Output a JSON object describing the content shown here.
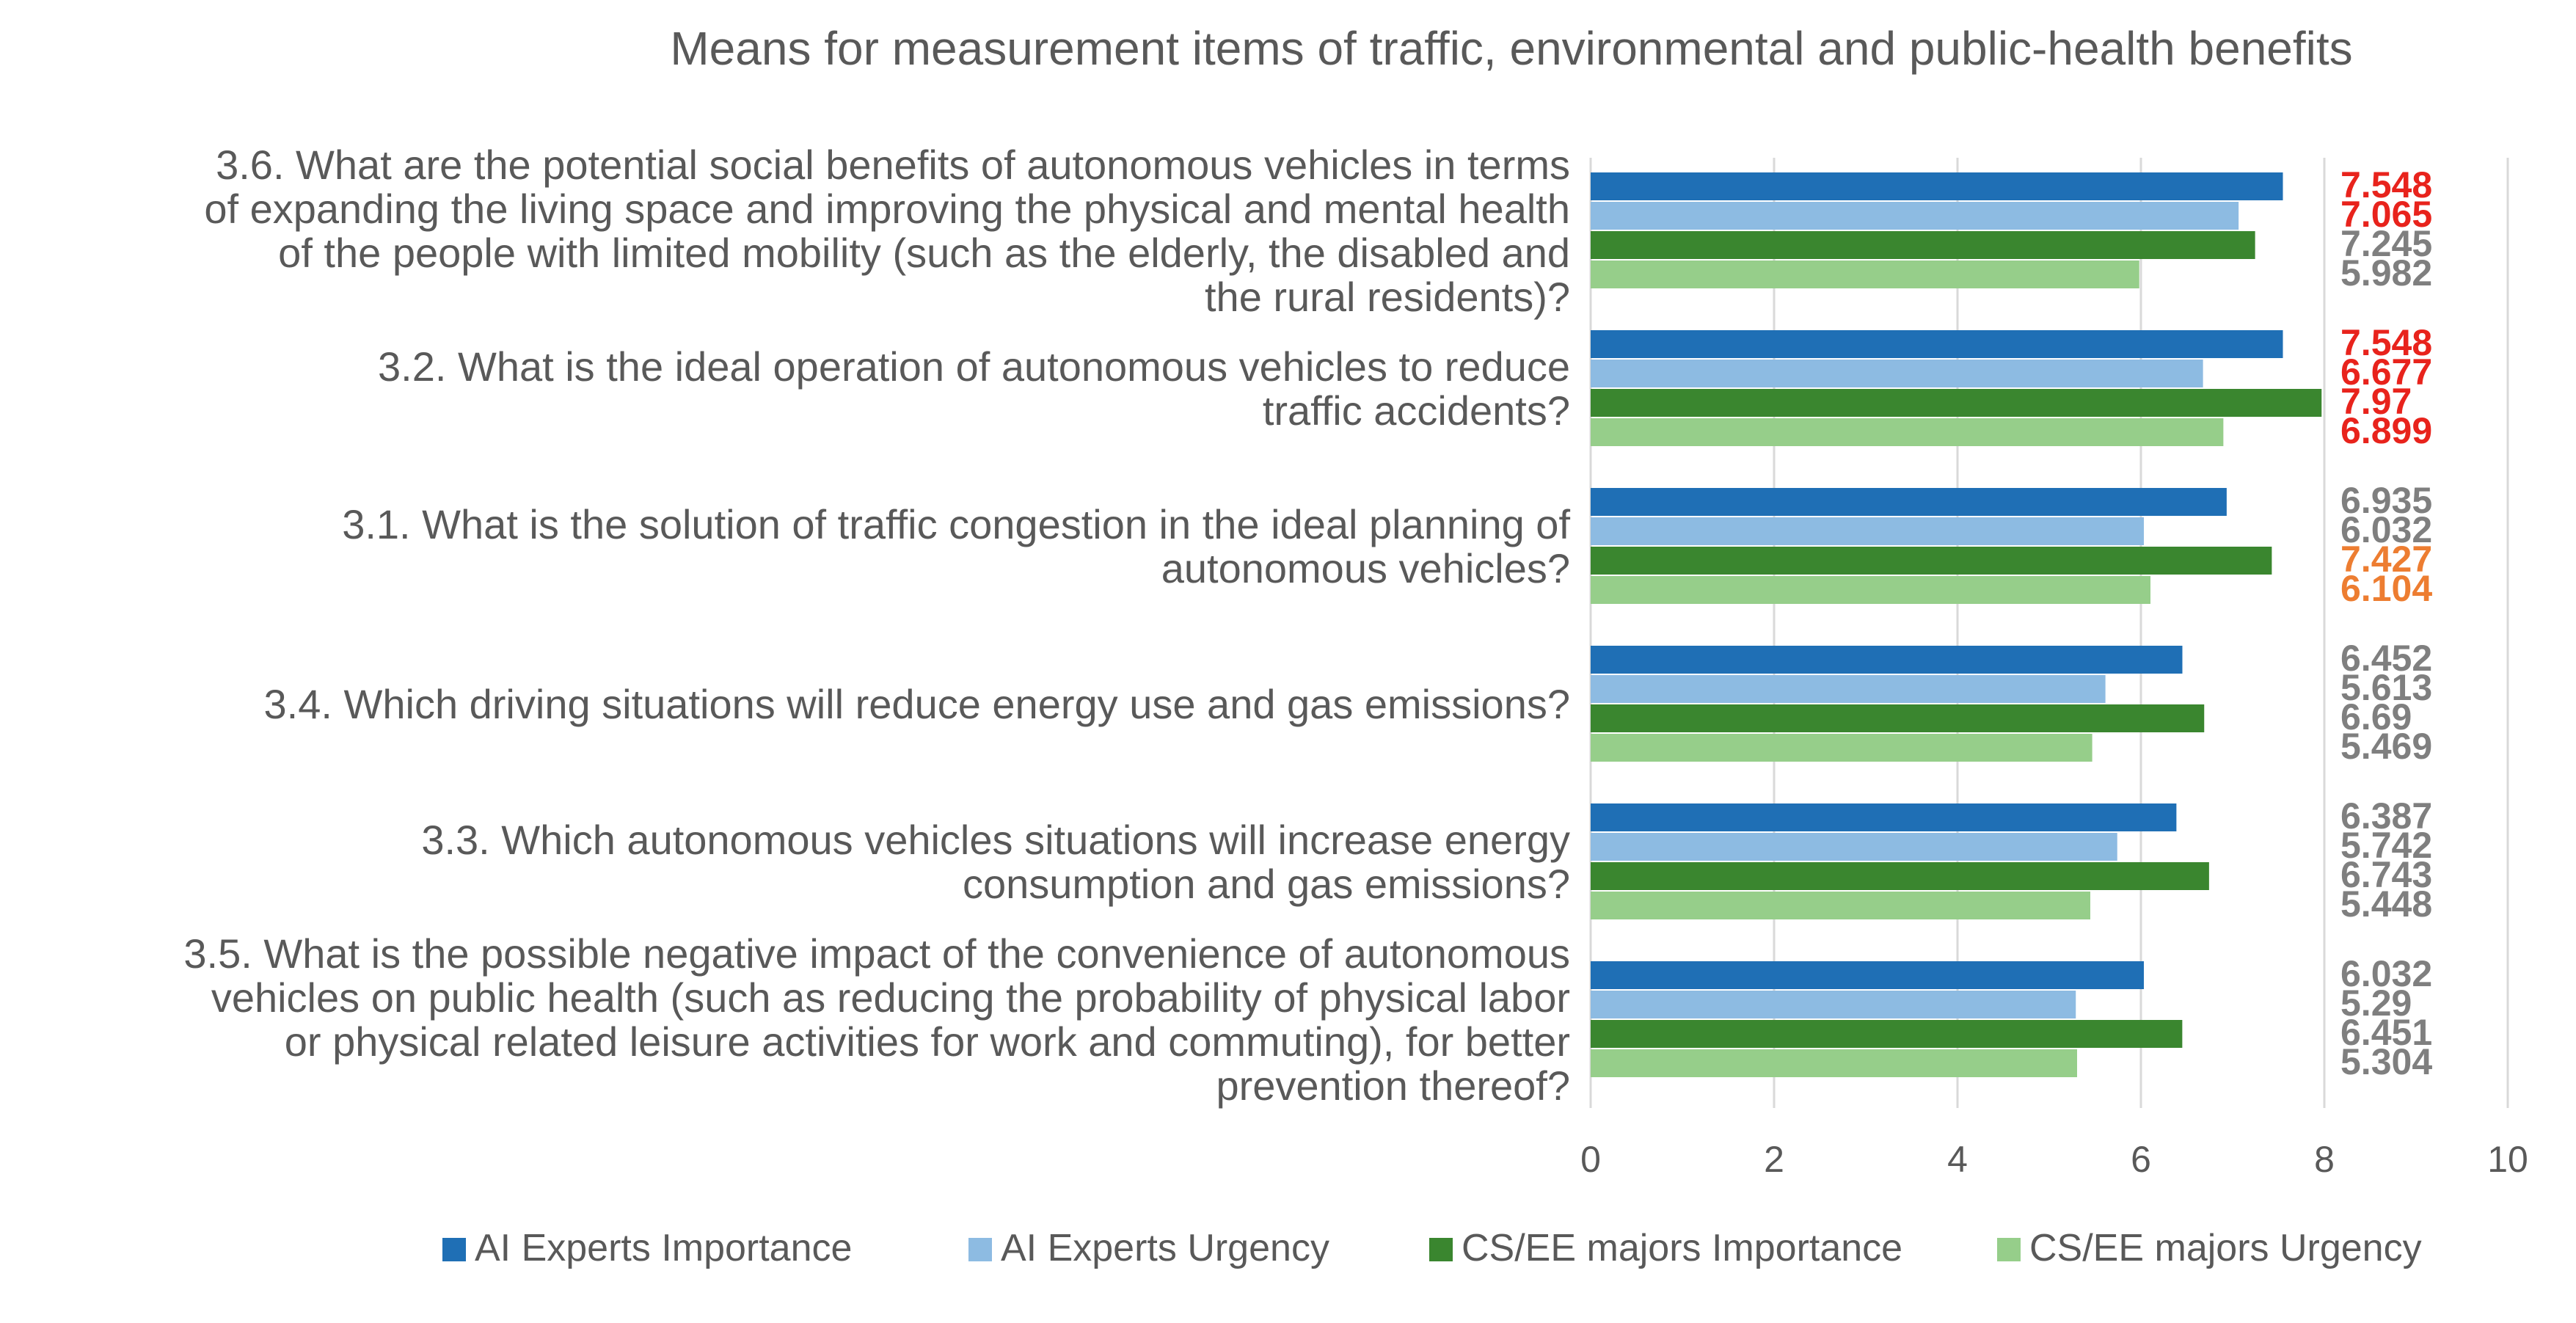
{
  "chart_data": {
    "type": "bar",
    "orientation": "horizontal",
    "title": "Means for measurement items of traffic, environmental and public-health benefits",
    "xlim": [
      0,
      10
    ],
    "xticks": [
      "0",
      "2",
      "4",
      "6",
      "8",
      "10"
    ],
    "grid": true,
    "legend_position": "bottom",
    "categories": [
      {
        "label_lines": [
          "3.6. What are the potential social benefits of autonomous vehicles in terms",
          "of expanding the living space and improving the physical and mental health",
          "of the people with limited mobility (such as the elderly, the disabled and",
          "the rural residents)?"
        ]
      },
      {
        "label_lines": [
          "3.2. What is the ideal operation of autonomous vehicles to reduce",
          "traffic accidents?"
        ]
      },
      {
        "label_lines": [
          "3.1. What is the solution of traffic congestion in the ideal planning of",
          "autonomous vehicles?"
        ]
      },
      {
        "label_lines": [
          "3.4. Which driving situations will reduce energy use and gas emissions?"
        ]
      },
      {
        "label_lines": [
          "3.3. Which autonomous vehicles situations will increase energy",
          "consumption and gas emissions?"
        ]
      },
      {
        "label_lines": [
          "3.5. What is the possible negative impact of the convenience of autonomous",
          "vehicles on public health (such as reducing the probability of physical labor",
          "or physical related leisure activities for work and commuting), for better",
          "prevention thereof?"
        ]
      }
    ],
    "series": [
      {
        "name": "AI Experts  Importance",
        "color": "#1F6FB5",
        "values": [
          7.548,
          7.548,
          6.935,
          6.452,
          6.387,
          6.032
        ]
      },
      {
        "name": "AI Experts  Urgency",
        "color": "#8DBBE2",
        "values": [
          7.065,
          6.677,
          6.032,
          5.613,
          5.742,
          5.29
        ]
      },
      {
        "name": "CS/EE majors Importance",
        "color": "#3A862F",
        "values": [
          7.245,
          7.97,
          7.427,
          6.69,
          6.743,
          6.451
        ]
      },
      {
        "name": "CS/EE majors Urgency",
        "color": "#96CE8A",
        "values": [
          5.982,
          6.899,
          6.104,
          5.469,
          5.448,
          5.304
        ]
      }
    ],
    "value_labels": [
      [
        {
          "text": "7.548",
          "color": "#E8231C"
        },
        {
          "text": "7.065",
          "color": "#E8231C"
        },
        {
          "text": "7.245",
          "color": "#7F7F7F"
        },
        {
          "text": "5.982",
          "color": "#7F7F7F"
        }
      ],
      [
        {
          "text": "7.548",
          "color": "#E8231C"
        },
        {
          "text": "6.677",
          "color": "#E8231C"
        },
        {
          "text": "7.97",
          "color": "#E8231C"
        },
        {
          "text": "6.899",
          "color": "#E8231C"
        }
      ],
      [
        {
          "text": "6.935",
          "color": "#7F7F7F"
        },
        {
          "text": "6.032",
          "color": "#7F7F7F"
        },
        {
          "text": "7.427",
          "color": "#ED7D31"
        },
        {
          "text": "6.104",
          "color": "#ED7D31"
        }
      ],
      [
        {
          "text": "6.452",
          "color": "#7F7F7F"
        },
        {
          "text": "5.613",
          "color": "#7F7F7F"
        },
        {
          "text": "6.69",
          "color": "#7F7F7F"
        },
        {
          "text": "5.469",
          "color": "#7F7F7F"
        }
      ],
      [
        {
          "text": "6.387",
          "color": "#7F7F7F"
        },
        {
          "text": "5.742",
          "color": "#7F7F7F"
        },
        {
          "text": "6.743",
          "color": "#7F7F7F"
        },
        {
          "text": "5.448",
          "color": "#7F7F7F"
        }
      ],
      [
        {
          "text": "6.032",
          "color": "#7F7F7F"
        },
        {
          "text": "5.29",
          "color": "#7F7F7F"
        },
        {
          "text": "6.451",
          "color": "#7F7F7F"
        },
        {
          "text": "5.304",
          "color": "#7F7F7F"
        }
      ]
    ]
  },
  "colors": {
    "text": "#595959",
    "grid": "#D9D9D9"
  }
}
